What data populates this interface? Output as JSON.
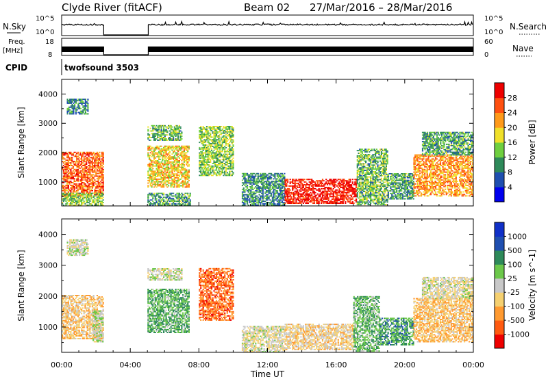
{
  "header": {
    "station": "Clyde River (fitACF)",
    "beam": "Beam 02",
    "dates": "27/Mar/2016 – 28/Mar/2016"
  },
  "top_panels": {
    "nsky_label": "N.Sky",
    "nsky_ticks": [
      "10^5",
      "10^0"
    ],
    "nsearch_label": "N.Search",
    "nsearch_ticks": [
      "10^5",
      "10^0"
    ],
    "freq_label": "Freq.",
    "freq_unit": "[MHz]",
    "freq_ticks": [
      "18",
      "8"
    ],
    "nave_label": "Nave",
    "nave_ticks": [
      "60",
      "0"
    ],
    "cpid_label": "CPID",
    "cpid_value": "twofsound 3503"
  },
  "chart_data": [
    {
      "type": "heatmap",
      "parameter": "power",
      "ylabel": "Slant Range [km]",
      "yticks": [
        "4000",
        "3000",
        "2000",
        "1000"
      ],
      "ylim": [
        180,
        4500
      ],
      "colorbar_label": "Power [dB]",
      "colorbar_ticks": [
        "28",
        "24",
        "20",
        "16",
        "12",
        "8",
        "4"
      ],
      "colorbar_range": [
        0,
        32
      ],
      "colors": [
        "#0000ee",
        "#1f4fb0",
        "#2e8a5a",
        "#6fcf3f",
        "#f0e02a",
        "#ff9a1a",
        "#ff5010",
        "#ee0000"
      ],
      "echo_regions": [
        {
          "t0": 0.0,
          "t1": 2.4,
          "r0": 500,
          "r1": 2000,
          "level": 0.78
        },
        {
          "t0": 0.0,
          "t1": 2.4,
          "r0": 180,
          "r1": 600,
          "level": 0.45
        },
        {
          "t0": 0.3,
          "t1": 1.5,
          "r0": 3300,
          "r1": 3800,
          "level": 0.3
        },
        {
          "t0": 5.0,
          "t1": 7.4,
          "r0": 800,
          "r1": 2200,
          "level": 0.6
        },
        {
          "t0": 5.0,
          "t1": 7.0,
          "r0": 2400,
          "r1": 2900,
          "level": 0.4
        },
        {
          "t0": 5.0,
          "t1": 7.5,
          "r0": 180,
          "r1": 600,
          "level": 0.35
        },
        {
          "t0": 8.0,
          "t1": 10.0,
          "r0": 1200,
          "r1": 2900,
          "level": 0.45
        },
        {
          "t0": 10.5,
          "t1": 13.0,
          "r0": 180,
          "r1": 1300,
          "level": 0.3
        },
        {
          "t0": 13.0,
          "t1": 17.2,
          "r0": 250,
          "r1": 1100,
          "level": 0.92
        },
        {
          "t0": 17.2,
          "t1": 19.0,
          "r0": 200,
          "r1": 2100,
          "level": 0.4
        },
        {
          "t0": 19.0,
          "t1": 20.5,
          "r0": 400,
          "r1": 1300,
          "level": 0.35
        },
        {
          "t0": 20.5,
          "t1": 24.0,
          "r0": 500,
          "r1": 1900,
          "level": 0.7
        },
        {
          "t0": 21.0,
          "t1": 24.0,
          "r0": 1900,
          "r1": 2700,
          "level": 0.35
        }
      ]
    },
    {
      "type": "heatmap",
      "parameter": "velocity",
      "ylabel": "Slant Range [km]",
      "yticks": [
        "4000",
        "3000",
        "2000",
        "1000"
      ],
      "ylim": [
        180,
        4500
      ],
      "xlabel": "Time UT",
      "xticks": [
        "00:00",
        "04:00",
        "08:00",
        "12:00",
        "16:00",
        "20:00",
        "00:00"
      ],
      "xlim": [
        0,
        24
      ],
      "colorbar_label": "Velocity [m s^-1]",
      "colorbar_ticks": [
        "1000",
        "500",
        "100",
        "25",
        "-25",
        "-100",
        "-500",
        "-1000"
      ],
      "colorbar_range": [
        -1000,
        1000
      ],
      "colors": [
        "#ee0000",
        "#ff5a10",
        "#ff9a30",
        "#f5d070",
        "#c8c8c8",
        "#6cc84a",
        "#2e8a5a",
        "#1f4fb0",
        "#1030c8"
      ],
      "echo_regions": [
        {
          "t0": 0.0,
          "t1": 2.4,
          "r0": 600,
          "r1": 2000,
          "vel": -250
        },
        {
          "t0": 1.8,
          "t1": 2.4,
          "r0": 500,
          "r1": 1500,
          "vel": 80
        },
        {
          "t0": 0.3,
          "t1": 1.5,
          "r0": 3300,
          "r1": 3800,
          "vel": 0
        },
        {
          "t0": 5.0,
          "t1": 7.4,
          "r0": 800,
          "r1": 2200,
          "vel": 300
        },
        {
          "t0": 5.0,
          "t1": 7.0,
          "r0": 2500,
          "r1": 2900,
          "vel": 0
        },
        {
          "t0": 8.0,
          "t1": 10.0,
          "r0": 1200,
          "r1": 2900,
          "vel": -600
        },
        {
          "t0": 10.5,
          "t1": 13.0,
          "r0": 180,
          "r1": 1000,
          "vel": -80
        },
        {
          "t0": 13.0,
          "t1": 17.0,
          "r0": 250,
          "r1": 1100,
          "vel": -180
        },
        {
          "t0": 17.0,
          "t1": 18.5,
          "r0": 200,
          "r1": 2000,
          "vel": 250
        },
        {
          "t0": 18.5,
          "t1": 20.5,
          "r0": 400,
          "r1": 1300,
          "vel": 400
        },
        {
          "t0": 20.5,
          "t1": 24.0,
          "r0": 500,
          "r1": 1900,
          "vel": -300
        },
        {
          "t0": 21.0,
          "t1": 24.0,
          "r0": 1900,
          "r1": 2600,
          "vel": -60
        }
      ]
    }
  ]
}
